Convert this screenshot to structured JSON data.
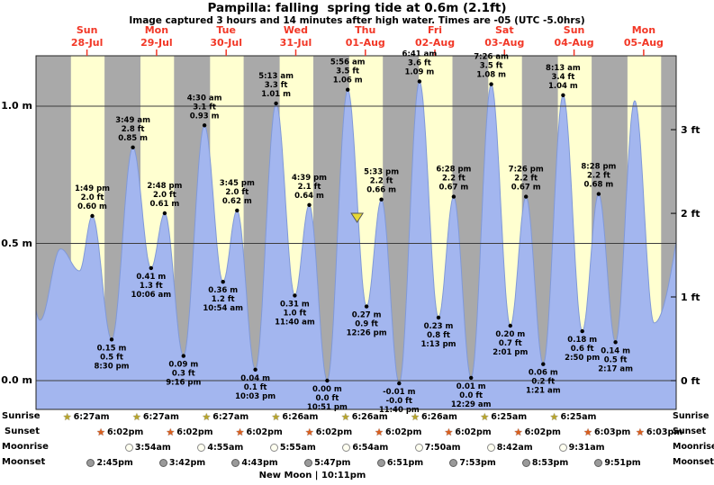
{
  "header": {
    "title": "Pampilla: falling  spring tide at 0.6m (2.1ft)",
    "subtitle": "Image captured 3 hours and 14 minutes after high water. Times are -05 (UTC -5.0hrs)"
  },
  "colors": {
    "night": "#a9a9a9",
    "day": "#ffffd0",
    "water": "#a3b6ef",
    "water_edge": "#8099d8",
    "day_label": "#f23726",
    "marker": "#e6d835",
    "sunrise_icon": "#b7a42c",
    "sunset_icon": "#d95f1e"
  },
  "chart_data": {
    "type": "area",
    "title": "Pampilla: falling  spring tide at 0.6m (2.1ft)",
    "ylabel_left": "meters",
    "ylabel_right": "feet",
    "ylim_m": [
      -0.1,
      1.18
    ],
    "grid": "horizontal lines at 0.0 m, 0.5 m, 1.0 m; day columns shaded yellow (daylight) and gray (night)",
    "y_ticks_m": [
      {
        "label": "1.0 m",
        "h": 1.0
      },
      {
        "label": "0.5 m",
        "h": 0.5
      },
      {
        "label": "0.0 m",
        "h": 0.0
      }
    ],
    "y_ticks_ft": [
      {
        "label": "3 ft",
        "ft": 3
      },
      {
        "label": "2 ft",
        "ft": 2
      },
      {
        "label": "1 ft",
        "ft": 1
      },
      {
        "label": "0 ft",
        "ft": 0
      }
    ],
    "days": [
      {
        "name": "Sun",
        "date": "28-Jul"
      },
      {
        "name": "Mon",
        "date": "29-Jul"
      },
      {
        "name": "Tue",
        "date": "30-Jul"
      },
      {
        "name": "Wed",
        "date": "31-Jul"
      },
      {
        "name": "Thu",
        "date": "01-Aug"
      },
      {
        "name": "Fri",
        "date": "02-Aug"
      },
      {
        "name": "Sat",
        "date": "03-Aug"
      },
      {
        "name": "Sun",
        "date": "04-Aug"
      },
      {
        "name": "Mon",
        "date": "05-Aug"
      }
    ],
    "extremes": [
      {
        "t": -11.0,
        "h": 0.58
      },
      {
        "t": -4.2,
        "h": 0.22
      },
      {
        "t": 2.9,
        "h": 0.48
      },
      {
        "t": 9.4,
        "h": 0.4
      },
      {
        "t": 13.82,
        "h": 0.6,
        "label": {
          "type": "high",
          "time": "1:49 pm",
          "ft": "2.0 ft",
          "m": "0.60 m"
        }
      },
      {
        "t": 20.5,
        "h": 0.15,
        "label": {
          "type": "low",
          "time": "8:30 pm",
          "ft": "0.5 ft",
          "m": "0.15 m"
        }
      },
      {
        "t": 27.82,
        "h": 0.85,
        "label": {
          "type": "high",
          "time": "3:49 am",
          "ft": "2.8 ft",
          "m": "0.85 m"
        }
      },
      {
        "t": 34.1,
        "h": 0.41,
        "label": {
          "type": "low",
          "time": "10:06 am",
          "ft": "1.3 ft",
          "m": "0.41 m"
        }
      },
      {
        "t": 38.8,
        "h": 0.61,
        "label": {
          "type": "high",
          "time": "2:48 pm",
          "ft": "2.0 ft",
          "m": "0.61 m"
        }
      },
      {
        "t": 45.27,
        "h": 0.09,
        "label": {
          "type": "low",
          "time": "9:16 pm",
          "ft": "0.3 ft",
          "m": "0.09 m"
        }
      },
      {
        "t": 52.5,
        "h": 0.93,
        "label": {
          "type": "high",
          "time": "4:30 am",
          "ft": "3.1 ft",
          "m": "0.93 m"
        }
      },
      {
        "t": 58.9,
        "h": 0.36,
        "label": {
          "type": "low",
          "time": "10:54 am",
          "ft": "1.2 ft",
          "m": "0.36 m"
        }
      },
      {
        "t": 63.75,
        "h": 0.62,
        "label": {
          "type": "high",
          "time": "3:45 pm",
          "ft": "2.0 ft",
          "m": "0.62 m"
        }
      },
      {
        "t": 70.05,
        "h": 0.04,
        "label": {
          "type": "low",
          "time": "10:03 pm",
          "ft": "0.1 ft",
          "m": "0.04 m"
        }
      },
      {
        "t": 77.22,
        "h": 1.01,
        "label": {
          "type": "high",
          "time": "5:13 am",
          "ft": "3.3 ft",
          "m": "1.01 m"
        }
      },
      {
        "t": 83.67,
        "h": 0.31,
        "label": {
          "type": "low",
          "time": "11:40 am",
          "ft": "1.0 ft",
          "m": "0.31 m"
        }
      },
      {
        "t": 88.65,
        "h": 0.64,
        "label": {
          "type": "high",
          "time": "4:39 pm",
          "ft": "2.1 ft",
          "m": "0.64 m"
        }
      },
      {
        "t": 94.85,
        "h": 0.0,
        "label": {
          "type": "low",
          "time": "10:51 pm",
          "ft": "0.0 ft",
          "m": "0.00 m"
        }
      },
      {
        "t": 101.93,
        "h": 1.06,
        "label": {
          "type": "high",
          "time": "5:56 am",
          "ft": "3.5 ft",
          "m": "1.06 m"
        }
      },
      {
        "t": 108.43,
        "h": 0.27,
        "label": {
          "type": "low",
          "time": "12:26 pm",
          "ft": "0.9 ft",
          "m": "0.27 m"
        }
      },
      {
        "t": 113.55,
        "h": 0.66,
        "label": {
          "type": "high",
          "time": "5:33 pm",
          "ft": "2.2 ft",
          "m": "0.66 m"
        }
      },
      {
        "t": 119.67,
        "h": -0.01,
        "label": {
          "type": "low",
          "time": "11:40 pm",
          "ft": "-0.0 ft",
          "m": "-0.01 m"
        }
      },
      {
        "t": 126.68,
        "h": 1.09,
        "label": {
          "type": "high",
          "time": "6:41 am",
          "ft": "3.6 ft",
          "m": "1.09 m"
        }
      },
      {
        "t": 133.22,
        "h": 0.23,
        "label": {
          "type": "low",
          "time": "1:13 pm",
          "ft": "0.8 ft",
          "m": "0.23 m"
        }
      },
      {
        "t": 138.47,
        "h": 0.67,
        "label": {
          "type": "high",
          "time": "6:28 pm",
          "ft": "2.2 ft",
          "m": "0.67 m"
        }
      },
      {
        "t": 144.48,
        "h": 0.01,
        "label": {
          "type": "low",
          "time": "12:29 am",
          "ft": "0.0 ft",
          "m": "0.01 m"
        }
      },
      {
        "t": 151.43,
        "h": 1.08,
        "label": {
          "type": "high",
          "time": "7:26 am",
          "ft": "3.5 ft",
          "m": "1.08 m"
        }
      },
      {
        "t": 158.02,
        "h": 0.2,
        "label": {
          "type": "low",
          "time": "2:01 pm",
          "ft": "0.7 ft",
          "m": "0.20 m"
        }
      },
      {
        "t": 163.43,
        "h": 0.67,
        "label": {
          "type": "high",
          "time": "7:26 pm",
          "ft": "2.2 ft",
          "m": "0.67 m"
        }
      },
      {
        "t": 169.35,
        "h": 0.06,
        "label": {
          "type": "low",
          "time": "1:21 am",
          "ft": "0.2 ft",
          "m": "0.06 m"
        }
      },
      {
        "t": 176.22,
        "h": 1.04,
        "label": {
          "type": "high",
          "time": "8:13 am",
          "ft": "3.4 ft",
          "m": "1.04 m"
        }
      },
      {
        "t": 182.83,
        "h": 0.18,
        "label": {
          "type": "low",
          "time": "2:50 pm",
          "ft": "0.6 ft",
          "m": "0.18 m"
        }
      },
      {
        "t": 188.47,
        "h": 0.68,
        "label": {
          "type": "high",
          "time": "8:28 pm",
          "ft": "2.2 ft",
          "m": "0.68 m"
        }
      },
      {
        "t": 194.28,
        "h": 0.14,
        "label": {
          "type": "low",
          "time": "2:17 am",
          "ft": "0.5 ft",
          "m": "0.14 m"
        }
      },
      {
        "t": 200.92,
        "h": 1.02
      },
      {
        "t": 207.6,
        "h": 0.21
      },
      {
        "t": 225.7,
        "h": 1.0
      }
    ],
    "current_marker": {
      "t": 105.17,
      "h": 0.6
    },
    "sun_moon": {
      "sunrise": [
        {
          "day": 0,
          "time": "6:27am"
        },
        {
          "day": 1,
          "time": "6:27am"
        },
        {
          "day": 2,
          "time": "6:27am"
        },
        {
          "day": 3,
          "time": "6:26am"
        },
        {
          "day": 4,
          "time": "6:26am"
        },
        {
          "day": 5,
          "time": "6:26am"
        },
        {
          "day": 6,
          "time": "6:25am"
        },
        {
          "day": 7,
          "time": "6:25am"
        }
      ],
      "sunset": [
        {
          "day": 0,
          "time": "6:02pm"
        },
        {
          "day": 1,
          "time": "6:02pm"
        },
        {
          "day": 2,
          "time": "6:02pm"
        },
        {
          "day": 3,
          "time": "6:02pm"
        },
        {
          "day": 4,
          "time": "6:02pm"
        },
        {
          "day": 5,
          "time": "6:02pm"
        },
        {
          "day": 6,
          "time": "6:02pm"
        },
        {
          "day": 7,
          "time": "6:03pm"
        },
        {
          "day": 8,
          "time": "6:03pm"
        }
      ],
      "moonrise": [
        {
          "day": 1,
          "time": "3:54am"
        },
        {
          "day": 2,
          "time": "4:55am"
        },
        {
          "day": 3,
          "time": "5:55am"
        },
        {
          "day": 4,
          "time": "6:54am"
        },
        {
          "day": 5,
          "time": "7:50am"
        },
        {
          "day": 6,
          "time": "8:42am"
        },
        {
          "day": 7,
          "time": "9:31am"
        }
      ],
      "moonset": [
        {
          "day": 0,
          "time": "2:45pm"
        },
        {
          "day": 1,
          "time": "3:42pm"
        },
        {
          "day": 2,
          "time": "4:43pm"
        },
        {
          "day": 3,
          "time": "5:47pm"
        },
        {
          "day": 4,
          "time": "6:51pm"
        },
        {
          "day": 5,
          "time": "7:53pm"
        },
        {
          "day": 6,
          "time": "8:53pm"
        },
        {
          "day": 7,
          "time": "9:51pm"
        }
      ]
    }
  },
  "footer": {
    "row_labels": [
      "Sunrise",
      "Sunset",
      "Moonrise",
      "Moonset"
    ],
    "new_moon": "New Moon | 10:11pm"
  }
}
